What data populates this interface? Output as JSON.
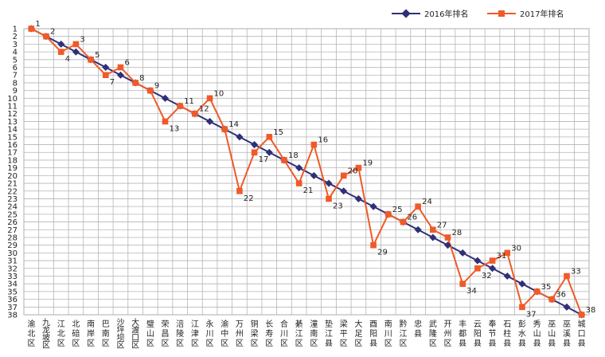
{
  "chart_data": {
    "type": "line",
    "title": "",
    "xlabel": "",
    "ylabel": "",
    "ylim": [
      1,
      38
    ],
    "y_inverted": true,
    "grid": true,
    "legend_position": "top-right",
    "categories": [
      "渝北区",
      "九龙坡区",
      "江北区",
      "北碚区",
      "南岸区",
      "巴南区",
      "沙坪坝区",
      "大渡口区",
      "璧山区",
      "荣昌区",
      "涪陵区",
      "江津区",
      "永川区",
      "渝中区",
      "万州区",
      "铜梁区",
      "长寿区",
      "合川区",
      "綦江区",
      "潼南区",
      "垫江县",
      "梁平区",
      "大足区",
      "酉阳县",
      "南川区",
      "黔江区",
      "忠县",
      "武隆区",
      "开州区",
      "丰都县",
      "云阳县",
      "奉节县",
      "石柱县",
      "彭水县",
      "秀山县",
      "巫山县",
      "巫溪县",
      "城口县"
    ],
    "yticks": [
      "1",
      "2",
      "3",
      "4",
      "5",
      "6",
      "7",
      "8",
      "9",
      "10",
      "11",
      "12",
      "13",
      "14",
      "15",
      "16",
      "17",
      "18",
      "19",
      "20",
      "21",
      "22",
      "23",
      "24",
      "25",
      "26",
      "27",
      "28",
      "29",
      "30",
      "31",
      "32",
      "33",
      "34",
      "35",
      "36",
      "37",
      "38"
    ],
    "series": [
      {
        "name": "2016年排名",
        "color": "#2e3176",
        "values": [
          1,
          2,
          3,
          4,
          5,
          6,
          7,
          8,
          9,
          10,
          11,
          12,
          13,
          14,
          15,
          16,
          17,
          18,
          19,
          20,
          21,
          22,
          23,
          24,
          25,
          26,
          27,
          28,
          29,
          30,
          31,
          32,
          33,
          34,
          35,
          36,
          37,
          38
        ]
      },
      {
        "name": "2017年排名",
        "color": "#f05a28",
        "values": [
          1,
          2,
          4,
          3,
          5,
          7,
          6,
          8,
          9,
          13,
          11,
          12,
          10,
          14,
          22,
          17,
          15,
          18,
          21,
          16,
          23,
          20,
          19,
          29,
          25,
          26,
          24,
          27,
          28,
          34,
          32,
          31,
          30,
          37,
          35,
          36,
          33,
          38
        ]
      }
    ],
    "data_labels": [
      "1",
      "2",
      "4",
      "3",
      "5",
      "7",
      "6",
      "8",
      "9",
      "13",
      "11",
      "12",
      "10",
      "14",
      "22",
      "17",
      "15",
      "18",
      "21",
      "16",
      "23",
      "20",
      "19",
      "29",
      "25",
      "26",
      "24",
      "27",
      "28",
      "34",
      "32",
      "31",
      "30",
      "37",
      "35",
      "36",
      "33",
      "38"
    ]
  }
}
